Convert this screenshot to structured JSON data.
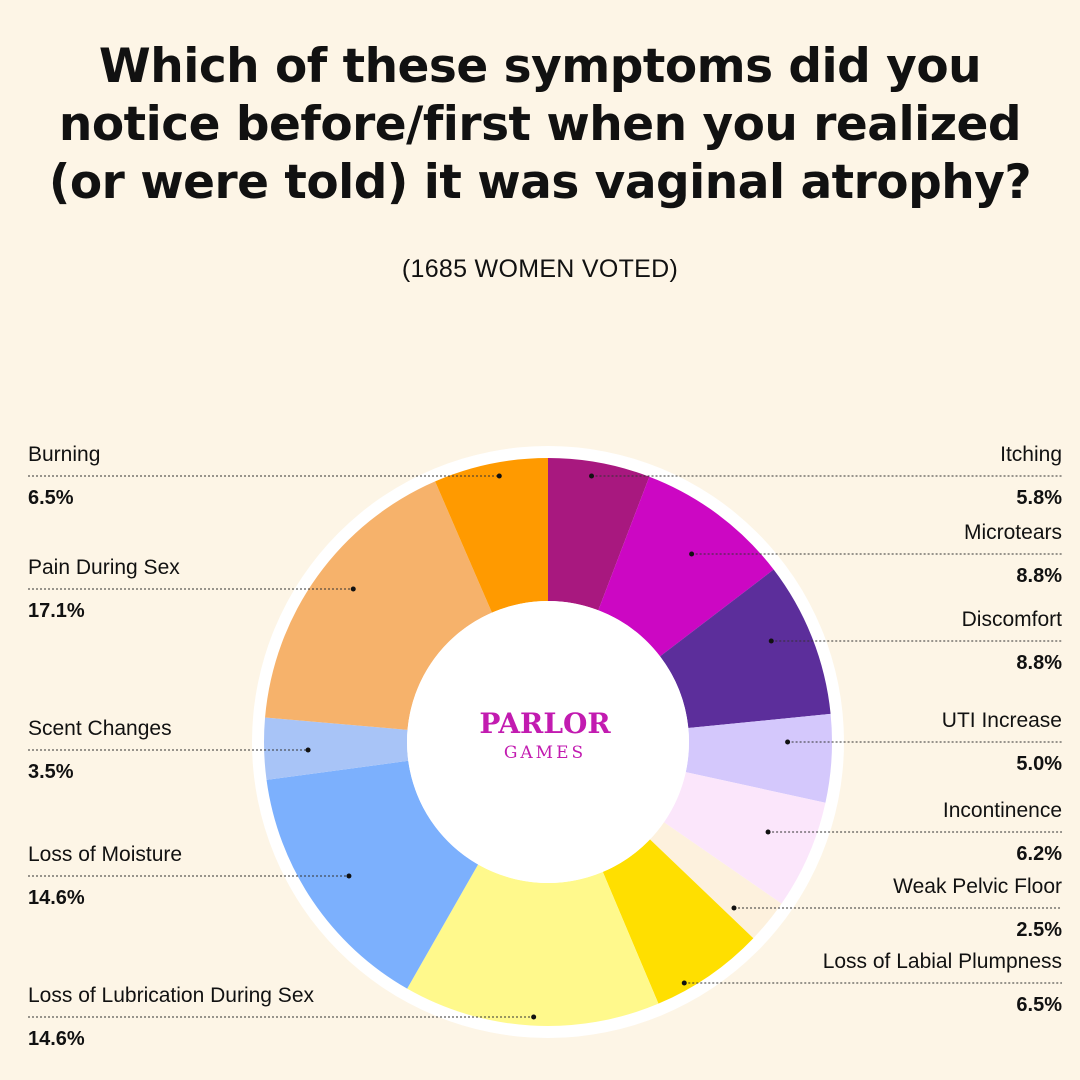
{
  "title": "Which of these symptoms did you notice before/first when you realized (or were told) it was vaginal atrophy?",
  "subtitle": "(1685 WOMEN VOTED)",
  "logo": {
    "top": "PARLOR",
    "bottom": "GAMES",
    "color": "#c21bb0"
  },
  "chart_data": {
    "type": "pie",
    "variant": "donut",
    "start": "top",
    "direction": "clockwise",
    "slices": [
      {
        "label": "Itching",
        "value": 5.8,
        "display": "5.8%",
        "color": "#a8187f",
        "side": "right"
      },
      {
        "label": "Microtears",
        "value": 8.8,
        "display": "8.8%",
        "color": "#cc07c3",
        "side": "right"
      },
      {
        "label": "Discomfort",
        "value": 8.8,
        "display": "8.8%",
        "color": "#5c2e9b",
        "side": "right"
      },
      {
        "label": "UTI Increase",
        "value": 5.0,
        "display": "5.0%",
        "color": "#d4c8fc",
        "side": "right"
      },
      {
        "label": "Incontinence",
        "value": 6.2,
        "display": "6.2%",
        "color": "#fbe6fb",
        "side": "right"
      },
      {
        "label": "Weak Pelvic Floor",
        "value": 2.5,
        "display": "2.5%",
        "color": "#fdf1dd",
        "side": "right"
      },
      {
        "label": "Loss of Labial Plumpness",
        "value": 6.5,
        "display": "6.5%",
        "color": "#ffdf00",
        "side": "right"
      },
      {
        "label": "Loss of Lubrication During Sex",
        "value": 14.6,
        "display": "14.6%",
        "color": "#fff98c",
        "side": "left"
      },
      {
        "label": "Loss of Moisture",
        "value": 14.6,
        "display": "14.6%",
        "color": "#7cb0fd",
        "side": "left"
      },
      {
        "label": "Scent Changes",
        "value": 3.5,
        "display": "3.5%",
        "color": "#a8c4f7",
        "side": "left"
      },
      {
        "label": "Pain During Sex",
        "value": 17.1,
        "display": "17.1%",
        "color": "#f6b26b",
        "side": "left"
      },
      {
        "label": "Burning",
        "value": 6.5,
        "display": "6.5%",
        "color": "#ff9a00",
        "side": "left"
      }
    ]
  }
}
